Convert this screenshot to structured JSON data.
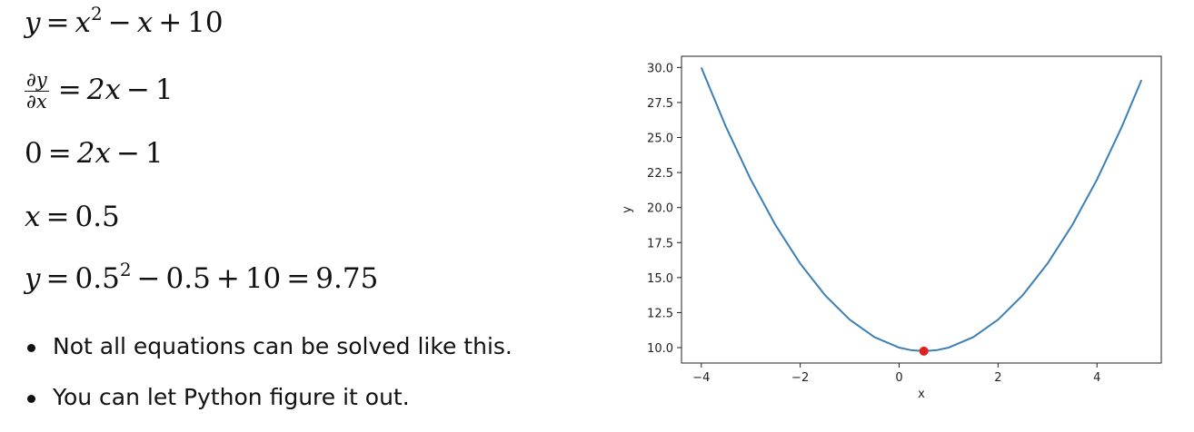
{
  "equations": {
    "eq1": {
      "lhs": "y",
      "x": "x",
      "exp": "2",
      "minus": "−",
      "x2": "x",
      "plus": "+",
      "c": "10"
    },
    "eq2": {
      "num": "∂y",
      "den": "∂x",
      "rhs_coef": "2x",
      "minus": "−",
      "one": "1"
    },
    "eq3": {
      "lhs": "0",
      "rhs_coef": "2x",
      "minus": "−",
      "one": "1"
    },
    "eq4": {
      "lhs": "x",
      "rhs": "0.5"
    },
    "eq5": {
      "lhs": "y",
      "base": "0.5",
      "exp": "2",
      "minus": "−",
      "b2": "0.5",
      "plus": "+",
      "c": "10",
      "result": "9.75"
    }
  },
  "bullets": [
    "Not all equations can be solved like this.",
    "You can let Python figure it out."
  ],
  "chart_data": {
    "type": "line",
    "title": "",
    "xlabel": "x",
    "ylabel": "y",
    "xlim": [
      -4.4,
      5.3
    ],
    "ylim": [
      8.9,
      30.8
    ],
    "xticks": [
      -4,
      -2,
      0,
      2,
      4
    ],
    "xtick_labels": [
      "−4",
      "−2",
      "0",
      "2",
      "4"
    ],
    "yticks": [
      10.0,
      12.5,
      15.0,
      17.5,
      20.0,
      22.5,
      25.0,
      27.5,
      30.0
    ],
    "ytick_labels": [
      "10.0",
      "12.5",
      "15.0",
      "17.5",
      "20.0",
      "22.5",
      "25.0",
      "27.5",
      "30.0"
    ],
    "grid": false,
    "series": [
      {
        "color": "#3b7fb6",
        "x": [
          -4.0,
          -3.5,
          -3.0,
          -2.5,
          -2.0,
          -1.5,
          -1.0,
          -0.5,
          0.0,
          0.25,
          0.5,
          0.75,
          1.0,
          1.5,
          2.0,
          2.5,
          3.0,
          3.5,
          4.0,
          4.5,
          4.9
        ],
        "y": [
          30.0,
          25.75,
          22.0,
          18.75,
          16.0,
          13.75,
          12.0,
          10.75,
          10.0,
          9.8125,
          9.75,
          9.8125,
          10.0,
          10.75,
          12.0,
          13.75,
          16.0,
          18.75,
          22.0,
          25.75,
          29.11
        ]
      }
    ],
    "highlight_point": {
      "x": 0.5,
      "y": 9.75,
      "color": "#e02020"
    }
  }
}
